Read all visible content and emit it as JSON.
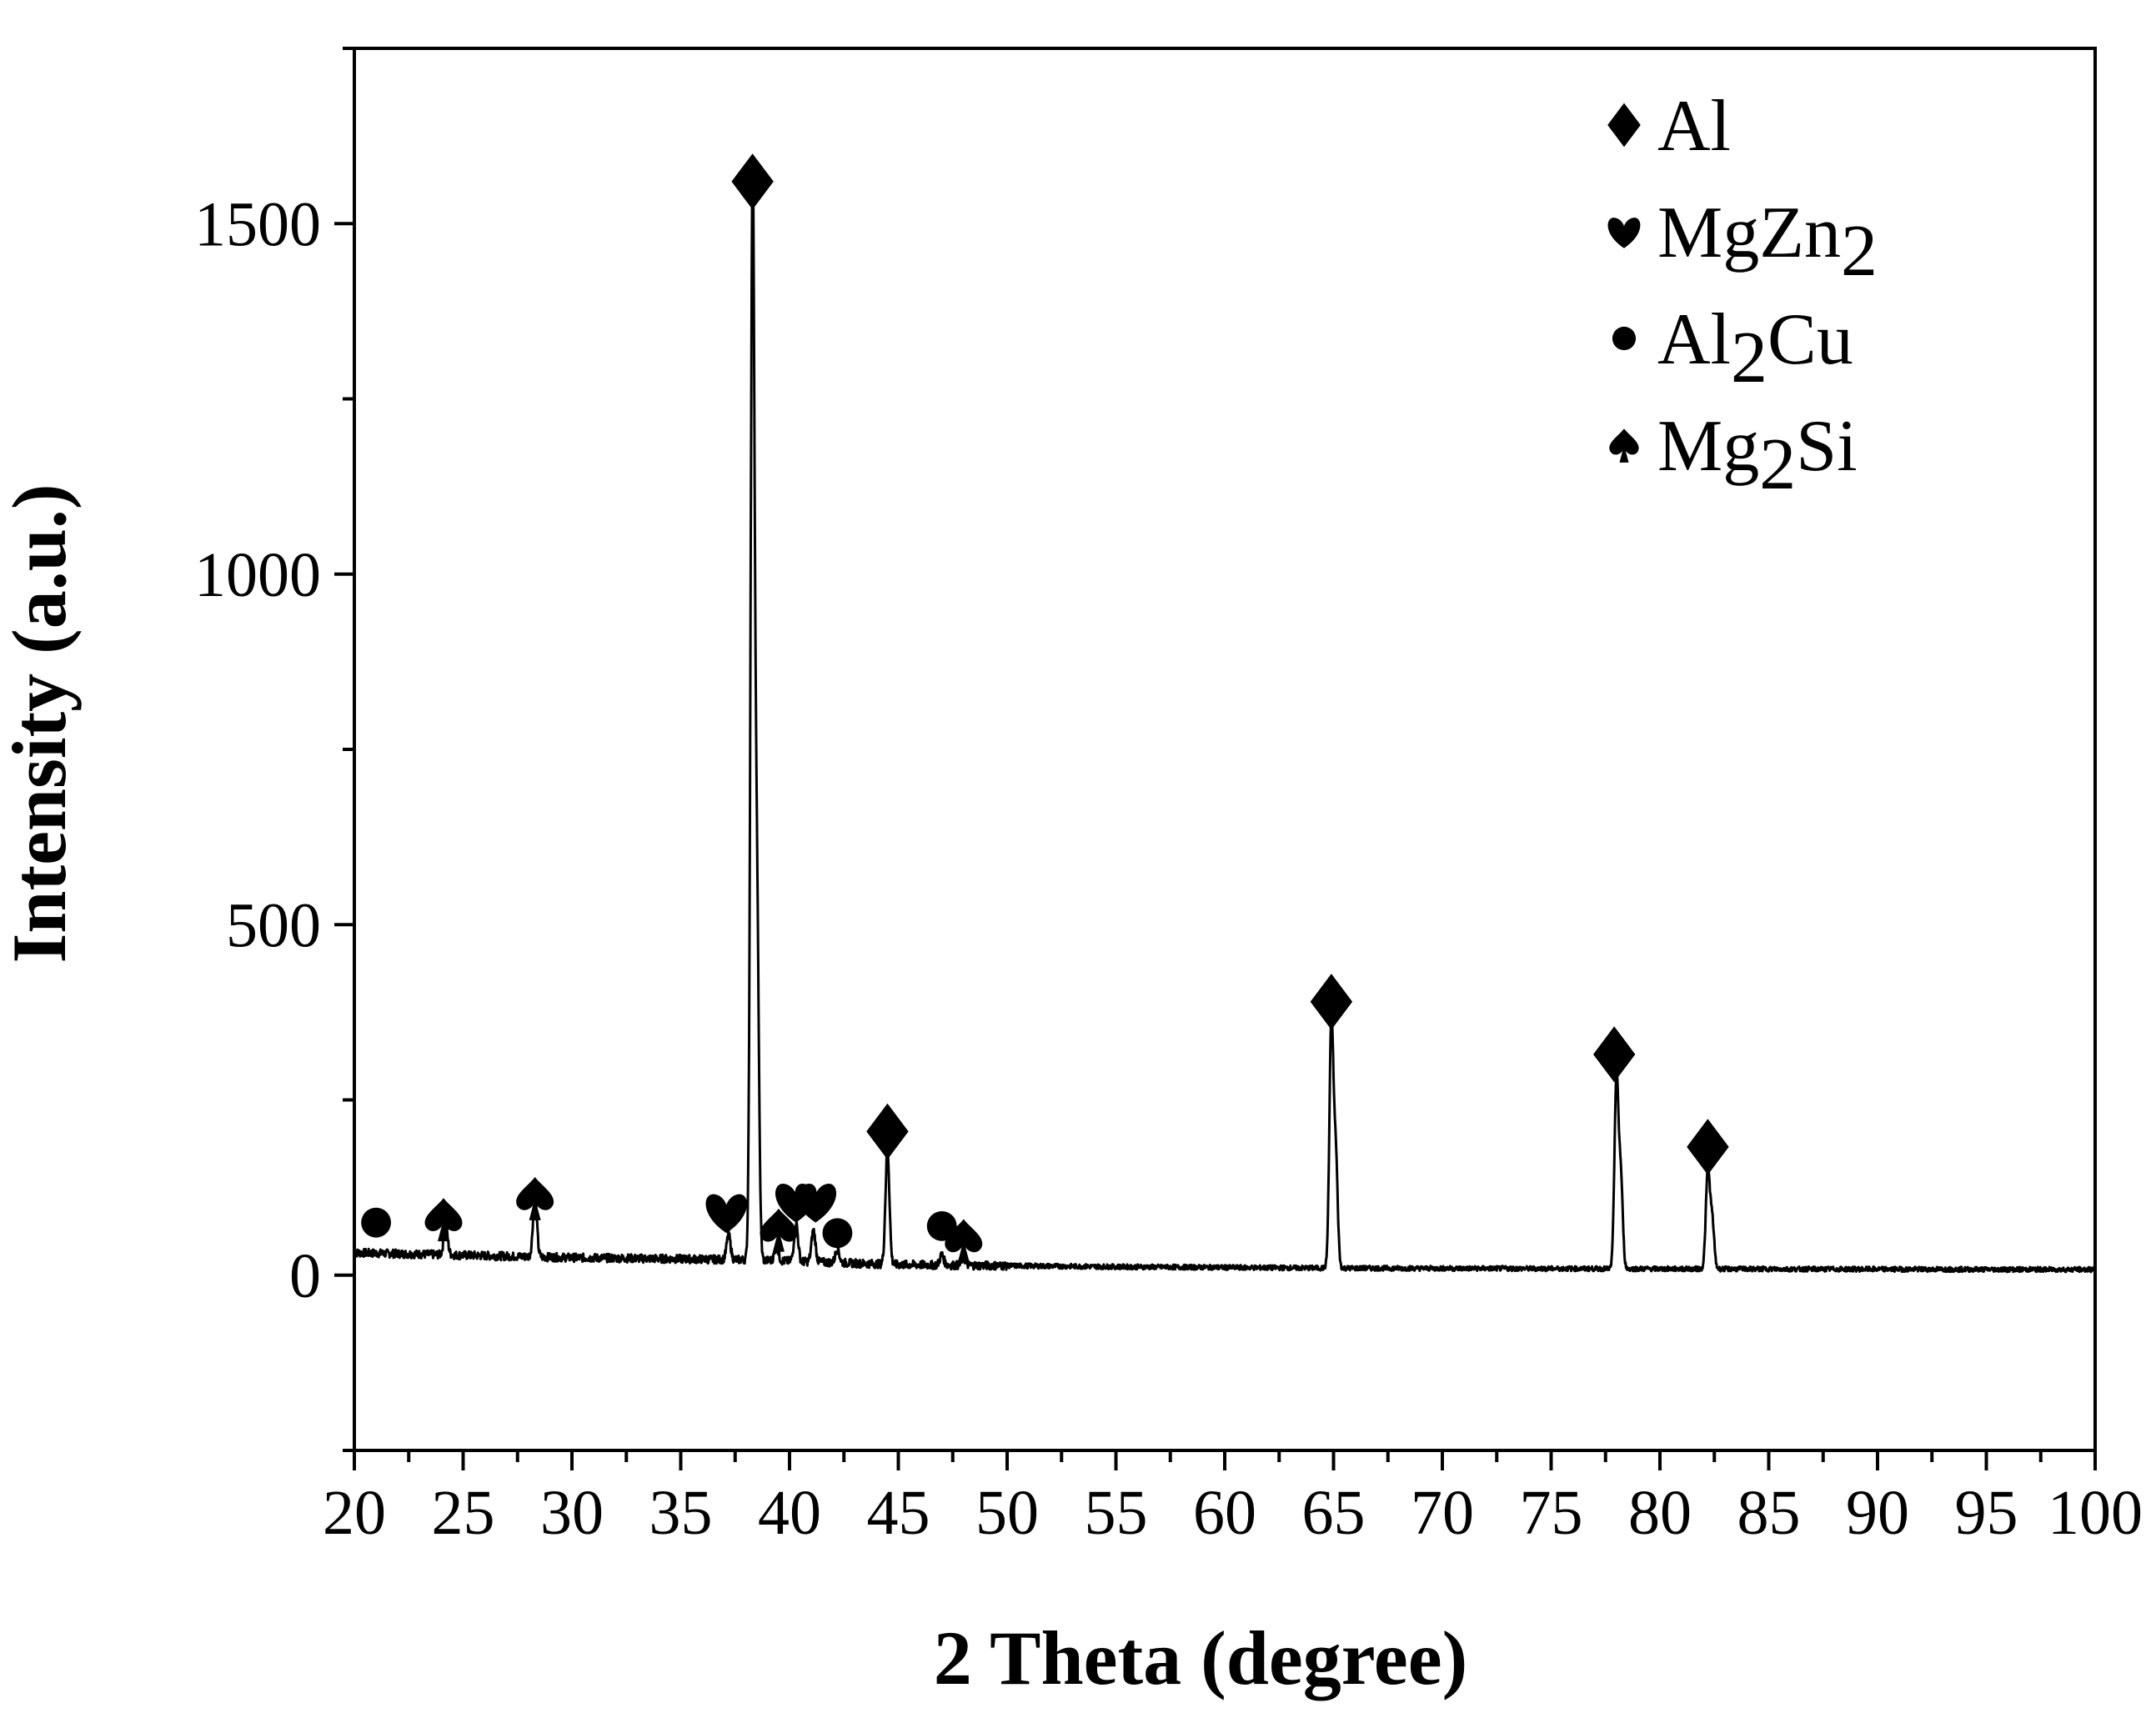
{
  "chart_data": {
    "type": "line",
    "xlabel": "2 Theta (degree)",
    "ylabel": "Intensity (a.u.)",
    "xlim": [
      20,
      100
    ],
    "ylim": [
      -250,
      1750
    ],
    "xticks": [
      "20",
      "25",
      "30",
      "35",
      "40",
      "45",
      "50",
      "55",
      "60",
      "65",
      "70",
      "75",
      "80",
      "85",
      "90",
      "95",
      "100"
    ],
    "yticks": [
      "0",
      "500",
      "1000",
      "1500"
    ],
    "grid": false,
    "legend_position": "top-right",
    "legend": [
      {
        "symbol": "diamond",
        "base": "Al",
        "sub": "",
        "tail": ""
      },
      {
        "symbol": "heart",
        "base": "MgZn",
        "sub": "2",
        "tail": ""
      },
      {
        "symbol": "circle",
        "base": "Al",
        "sub": "2",
        "tail": "Cu"
      },
      {
        "symbol": "spade",
        "base": "Mg",
        "sub": "2",
        "tail": "Si"
      }
    ],
    "series": [
      {
        "baseline": [
          [
            20,
            32
          ],
          [
            30,
            25
          ],
          [
            38,
            22
          ],
          [
            45,
            15
          ],
          [
            55,
            12
          ],
          [
            65,
            10
          ],
          [
            80,
            9
          ],
          [
            100,
            8
          ]
        ],
        "peaks": [
          {
            "x": 24.2,
            "y": 40
          },
          {
            "x": 28.3,
            "y": 85
          },
          {
            "x": 37.2,
            "y": 35
          },
          {
            "x": 38.3,
            "y": 1530
          },
          {
            "x": 38.5,
            "y": 500
          },
          {
            "x": 39.4,
            "y": 20
          },
          {
            "x": 40.3,
            "y": 55
          },
          {
            "x": 41.1,
            "y": 45
          },
          {
            "x": 42.2,
            "y": 20
          },
          {
            "x": 44.5,
            "y": 165
          },
          {
            "x": 47.0,
            "y": 15
          },
          {
            "x": 48.0,
            "y": 10
          },
          {
            "x": 64.9,
            "y": 350
          },
          {
            "x": 65.1,
            "y": 160
          },
          {
            "x": 78.0,
            "y": 270
          },
          {
            "x": 78.2,
            "y": 130
          },
          {
            "x": 82.2,
            "y": 140
          },
          {
            "x": 82.4,
            "y": 70
          }
        ]
      }
    ],
    "markers": [
      {
        "phase": "Al",
        "symbol": "diamond",
        "x": 38.3,
        "y": 1560
      },
      {
        "phase": "Al",
        "symbol": "diamond",
        "x": 44.5,
        "y": 205
      },
      {
        "phase": "Al",
        "symbol": "diamond",
        "x": 64.9,
        "y": 390
      },
      {
        "phase": "Al",
        "symbol": "diamond",
        "x": 77.9,
        "y": 315
      },
      {
        "phase": "Al",
        "symbol": "diamond",
        "x": 82.2,
        "y": 183
      },
      {
        "phase": "MgZn2",
        "symbol": "heart",
        "x": 37.1,
        "y": 90
      },
      {
        "phase": "MgZn2",
        "symbol": "heart",
        "x": 40.3,
        "y": 105
      },
      {
        "phase": "MgZn2",
        "symbol": "heart",
        "x": 41.2,
        "y": 105
      },
      {
        "phase": "Al2Cu",
        "symbol": "circle",
        "x": 21.0,
        "y": 75
      },
      {
        "phase": "Al2Cu",
        "symbol": "circle",
        "x": 42.2,
        "y": 60
      },
      {
        "phase": "Al2Cu",
        "symbol": "circle",
        "x": 47.0,
        "y": 70
      },
      {
        "phase": "Mg2Si",
        "symbol": "spade",
        "x": 24.1,
        "y": 80
      },
      {
        "phase": "Mg2Si",
        "symbol": "spade",
        "x": 28.3,
        "y": 110
      },
      {
        "phase": "Mg2Si",
        "symbol": "spade",
        "x": 39.5,
        "y": 65
      },
      {
        "phase": "Mg2Si",
        "symbol": "spade",
        "x": 48.0,
        "y": 50
      }
    ]
  }
}
